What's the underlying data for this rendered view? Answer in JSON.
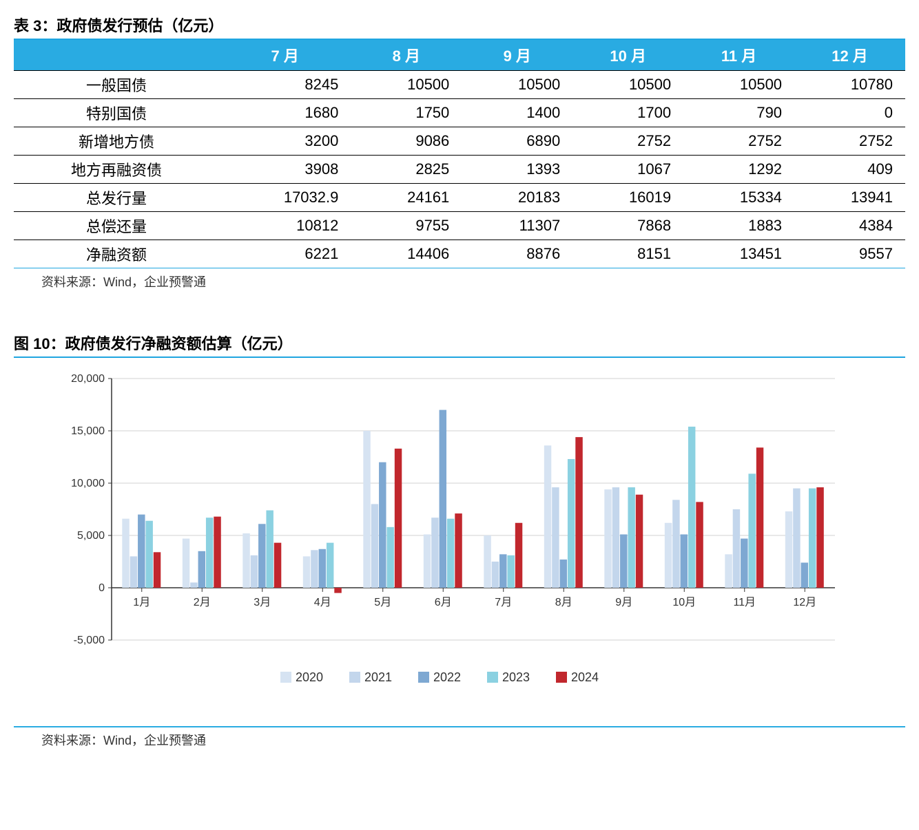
{
  "table": {
    "title": "表 3：政府债发行预估（亿元）",
    "header_bg": "#29abe2",
    "header_fg": "#ffffff",
    "columns": [
      "",
      "7 月",
      "8 月",
      "9 月",
      "10 月",
      "11 月",
      "12 月"
    ],
    "rows": [
      [
        "一般国债",
        "8245",
        "10500",
        "10500",
        "10500",
        "10500",
        "10780"
      ],
      [
        "特别国债",
        "1680",
        "1750",
        "1400",
        "1700",
        "790",
        "0"
      ],
      [
        "新增地方债",
        "3200",
        "9086",
        "6890",
        "2752",
        "2752",
        "2752"
      ],
      [
        "地方再融资债",
        "3908",
        "2825",
        "1393",
        "1067",
        "1292",
        "409"
      ],
      [
        "总发行量",
        "17032.9",
        "24161",
        "20183",
        "16019",
        "15334",
        "13941"
      ],
      [
        "总偿还量",
        "10812",
        "9755",
        "11307",
        "7868",
        "1883",
        "4384"
      ],
      [
        "净融资额",
        "6221",
        "14406",
        "8876",
        "8151",
        "13451",
        "9557"
      ]
    ],
    "source": "资料来源：Wind，企业预警通"
  },
  "chart": {
    "title": "图 10：政府债发行净融资额估算（亿元）",
    "type": "bar",
    "categories": [
      "1月",
      "2月",
      "3月",
      "4月",
      "5月",
      "6月",
      "7月",
      "8月",
      "9月",
      "10月",
      "11月",
      "12月"
    ],
    "series": [
      {
        "name": "2020",
        "color": "#d6e3f2",
        "values": [
          6600,
          4700,
          5200,
          3000,
          15000,
          5100,
          5000,
          13600,
          9400,
          6200,
          3200,
          7300
        ]
      },
      {
        "name": "2021",
        "color": "#c3d6ec",
        "values": [
          3000,
          500,
          3100,
          3600,
          8000,
          6700,
          2500,
          9600,
          9600,
          8400,
          7500,
          9500
        ]
      },
      {
        "name": "2022",
        "color": "#7ea8d2",
        "values": [
          7000,
          3500,
          6100,
          3700,
          12000,
          17000,
          3200,
          2700,
          5100,
          5100,
          4700,
          2400
        ]
      },
      {
        "name": "2023",
        "color": "#8bd1e1",
        "values": [
          6400,
          6700,
          7400,
          4300,
          5800,
          6600,
          3100,
          12300,
          9600,
          15400,
          10900,
          9500
        ]
      },
      {
        "name": "2024",
        "color": "#c1272d",
        "values": [
          3400,
          6800,
          4300,
          -500,
          13300,
          7100,
          6200,
          14400,
          8900,
          8200,
          13400,
          9600
        ]
      }
    ],
    "ylim": [
      -5000,
      20000
    ],
    "ytick_step": 5000,
    "ytick_labels": [
      "-5,000",
      "0",
      "5,000",
      "10,000",
      "15,000",
      "20,000"
    ],
    "grid_color": "#d0d0d0",
    "axis_color": "#333333",
    "background_color": "#ffffff",
    "label_fontsize": 16,
    "legend_fontsize": 18,
    "bar_group_gap": 0.35,
    "source": "资料来源：Wind，企业预警通"
  }
}
